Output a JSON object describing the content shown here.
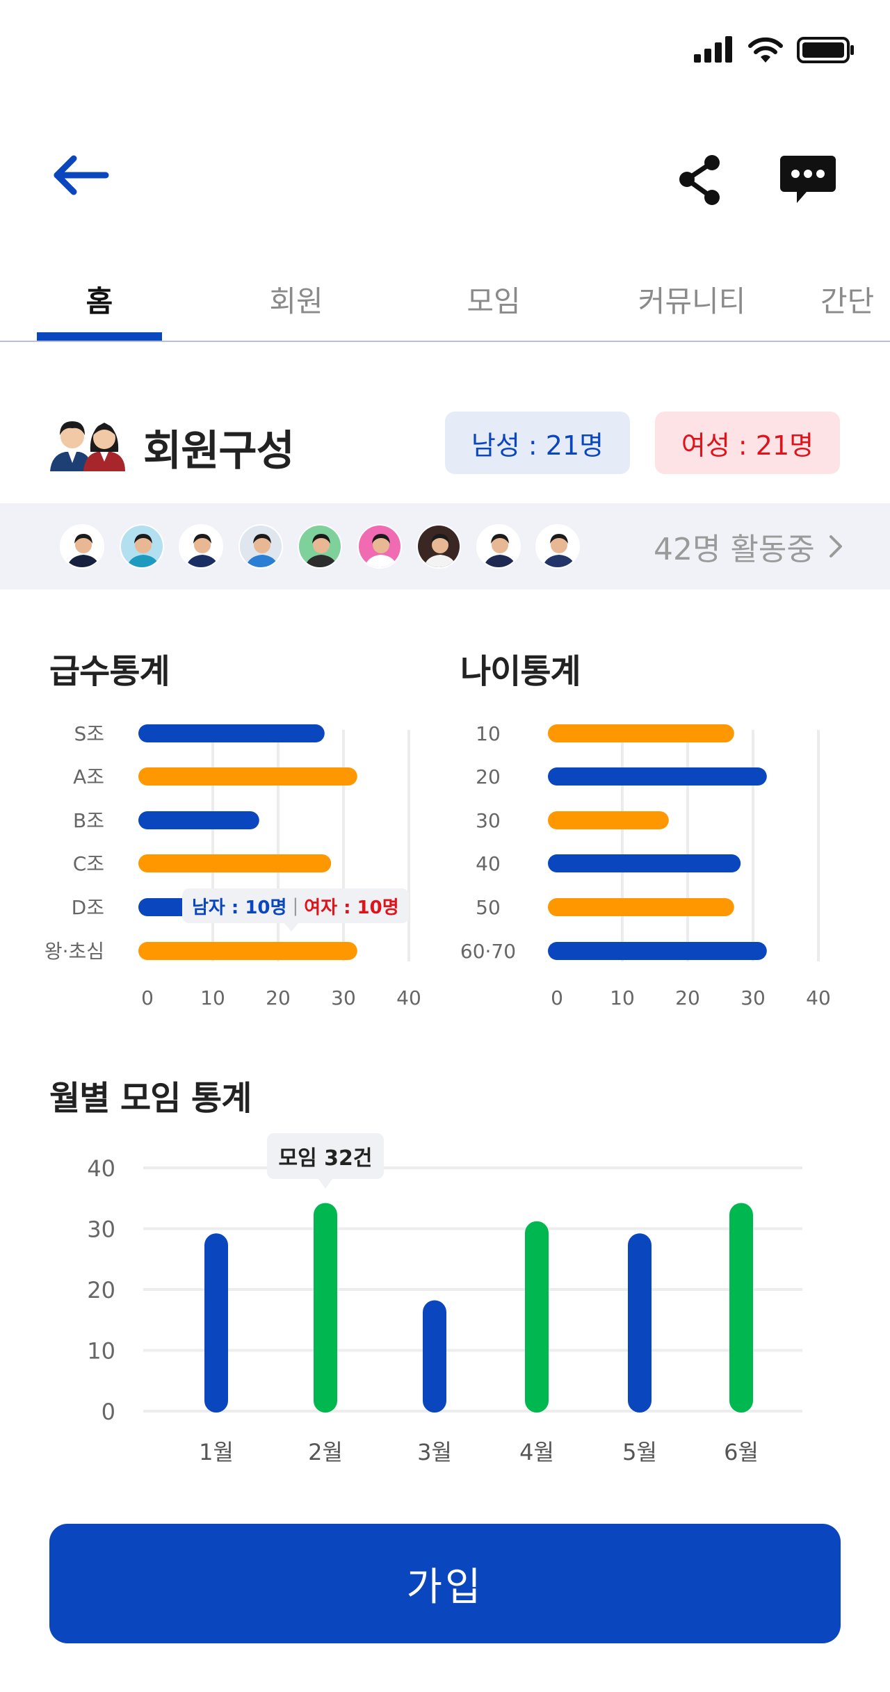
{
  "colors": {
    "primary": "#0a46be",
    "orange": "#ff9800",
    "green": "#00b84f",
    "male_bg": "#e5ecf8",
    "female_bg": "#fde3e5",
    "female_text": "#e0131b",
    "strip_bg": "#f1f2f7"
  },
  "status_bar": {
    "icons": [
      "signal-icon",
      "wifi-icon",
      "battery-icon"
    ]
  },
  "nav": {
    "back_icon": "arrow-left-icon",
    "share_icon": "share-icon",
    "chat_icon": "chat-bubble-icon"
  },
  "tabs": [
    {
      "label": "홈",
      "active": true
    },
    {
      "label": "회원",
      "active": false
    },
    {
      "label": "모임",
      "active": false
    },
    {
      "label": "커뮤니티",
      "active": false
    },
    {
      "label": "간단",
      "active": false
    }
  ],
  "members": {
    "title": "회원구성",
    "male_label": "남성 : 21명",
    "female_label": "여성 : 21명",
    "active_count": "42명 활동중",
    "avatar_count": 9
  },
  "grade_stats": {
    "title": "급수통계",
    "tooltip_male": "남자 : 10명",
    "tooltip_sep": "|",
    "tooltip_female": "여자 : 10명"
  },
  "age_stats": {
    "title": "나이통계"
  },
  "monthly_stats": {
    "title": "월별 모임 통계",
    "tooltip": "모임 32건"
  },
  "join_button": "가입",
  "chart_data": [
    {
      "type": "bar",
      "orientation": "horizontal",
      "title": "급수통계",
      "categories": [
        "S조",
        "A조",
        "B조",
        "C조",
        "D조",
        "왕·초심"
      ],
      "values": [
        27,
        32,
        17,
        28,
        10,
        32
      ],
      "colors": [
        "#0a46be",
        "#ff9800",
        "#0a46be",
        "#ff9800",
        "#0a46be",
        "#ff9800"
      ],
      "xlim": [
        0,
        40
      ],
      "ticks": [
        "0",
        "10",
        "20",
        "30",
        "40"
      ],
      "grid": true
    },
    {
      "type": "bar",
      "orientation": "horizontal",
      "title": "나이통계",
      "categories": [
        "10",
        "20",
        "30",
        "40",
        "50",
        "60·70"
      ],
      "values": [
        27,
        32,
        17,
        28,
        27,
        32
      ],
      "colors": [
        "#ff9800",
        "#0a46be",
        "#ff9800",
        "#0a46be",
        "#ff9800",
        "#0a46be"
      ],
      "xlim": [
        0,
        40
      ],
      "ticks": [
        "0",
        "10",
        "20",
        "30",
        "40"
      ],
      "grid": true
    },
    {
      "type": "bar",
      "orientation": "vertical",
      "title": "월별 모임 통계",
      "categories": [
        "1월",
        "2월",
        "3월",
        "4월",
        "5월",
        "6월"
      ],
      "values": [
        29,
        34,
        18,
        31,
        29,
        34
      ],
      "colors": [
        "#0a46be",
        "#00b84f",
        "#0a46be",
        "#00b84f",
        "#0a46be",
        "#00b84f"
      ],
      "ylim": [
        0,
        40
      ],
      "ticks": [
        "0",
        "10",
        "20",
        "30",
        "40"
      ],
      "grid": true
    }
  ]
}
